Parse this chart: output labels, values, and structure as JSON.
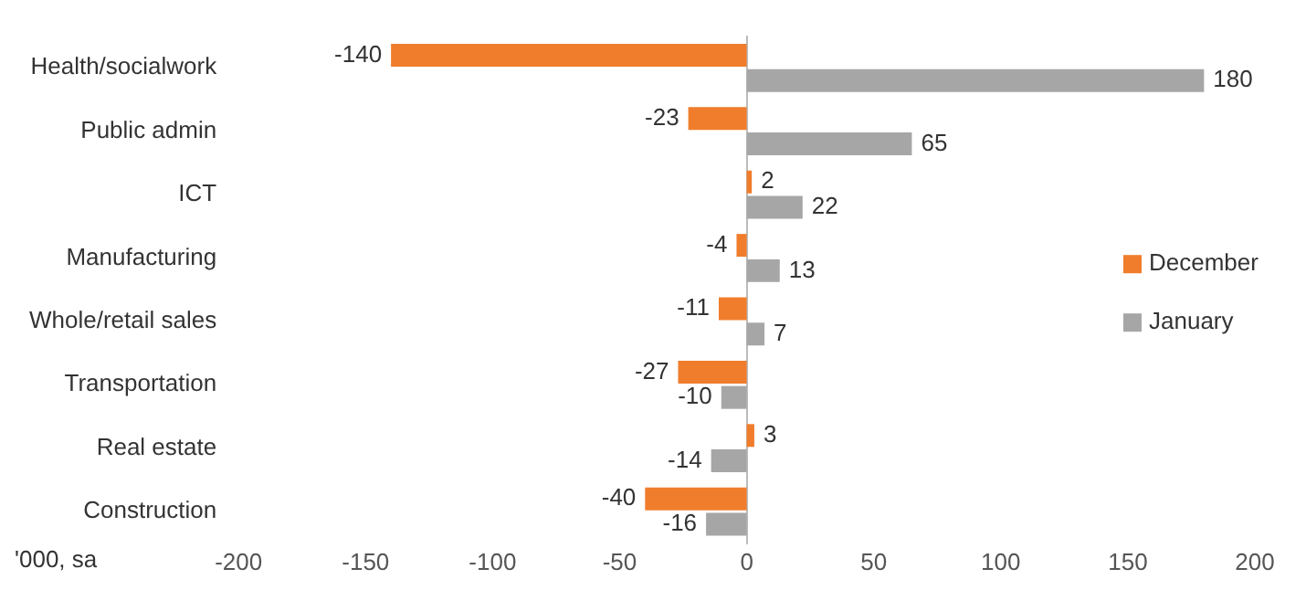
{
  "chart_data": {
    "type": "bar",
    "orientation": "horizontal",
    "categories": [
      "Health/socialwork",
      "Public admin",
      "ICT",
      "Manufacturing",
      "Whole/retail sales",
      "Transportation",
      "Real estate",
      "Construction"
    ],
    "series": [
      {
        "name": "December",
        "color": "#f07d2c",
        "values": [
          -140,
          -23,
          2,
          -4,
          -11,
          -27,
          3,
          -40
        ]
      },
      {
        "name": "January",
        "color": "#a6a6a6",
        "values": [
          180,
          65,
          22,
          13,
          7,
          -10,
          -14,
          -16
        ]
      }
    ],
    "xlim": [
      -200,
      200
    ],
    "xticks": [
      -200,
      -150,
      -100,
      -50,
      0,
      50,
      100,
      150,
      200
    ],
    "data_labels": true,
    "legend": "right",
    "annotations": [
      "'000, sa"
    ]
  }
}
